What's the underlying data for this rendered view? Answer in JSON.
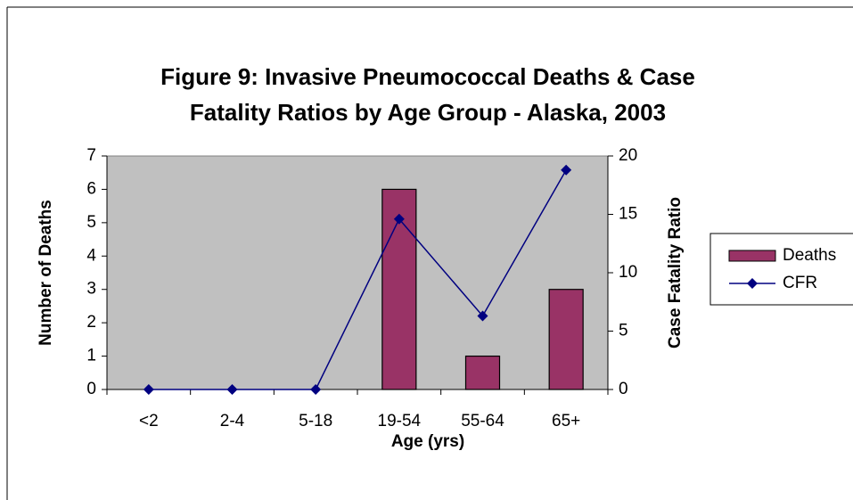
{
  "chart_data": {
    "type": "bar-line",
    "title": "Figure 9: Invasive Pneumococcal Deaths & Case Fatality Ratios by Age Group - Alaska, 2003",
    "x_label": "Age (yrs)",
    "y_label": "Number of Deaths",
    "y2_label": "Case Fatality Ratio",
    "categories": [
      "<2",
      "2-4",
      "5-18",
      "19-54",
      "55-64",
      "65+"
    ],
    "series": [
      {
        "name": "Deaths",
        "type": "bar",
        "color": "#993366",
        "values": [
          0,
          0,
          0,
          6,
          1,
          3
        ]
      },
      {
        "name": "CFR",
        "type": "line",
        "axis": "y2",
        "color": "#000080",
        "values": [
          0,
          0,
          0,
          14.6,
          6.3,
          18.8
        ]
      }
    ],
    "ylim": [
      0,
      7
    ],
    "yticks": [
      0,
      1,
      2,
      3,
      4,
      5,
      6,
      7
    ],
    "y2lim": [
      0,
      20
    ],
    "y2ticks": [
      0,
      5,
      10,
      15,
      20
    ],
    "plot_background": "#c0c0c0",
    "grid": false,
    "legend": "right"
  }
}
